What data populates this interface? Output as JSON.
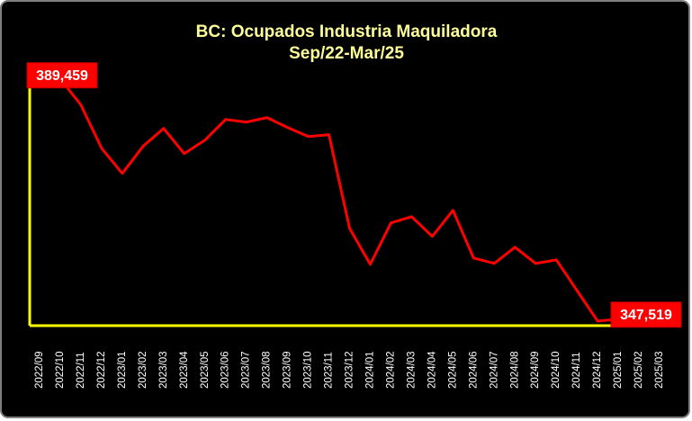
{
  "chart_data": {
    "type": "line",
    "title": "BC: Ocupados Industria Maquiladora",
    "subtitle": "Sep/22-Mar/25",
    "categories": [
      "2022/09",
      "2022/10",
      "2022/11",
      "2022/12",
      "2023/01",
      "2023/02",
      "2023/03",
      "2023/04",
      "2023/05",
      "2023/06",
      "2023/07",
      "2023/08",
      "2023/09",
      "2023/10",
      "2023/11",
      "2023/12",
      "2024/01",
      "2024/02",
      "2024/03",
      "2024/04",
      "2024/05",
      "2024/06",
      "2024/07",
      "2024/08",
      "2024/09",
      "2024/10",
      "2024/11",
      "2024/12",
      "2025/01",
      "2025/02",
      "2025/03"
    ],
    "values": [
      389459,
      388830,
      384255,
      376686,
      372270,
      377000,
      380155,
      375740,
      378105,
      381730,
      381260,
      382050,
      380310,
      378735,
      379050,
      362650,
      356340,
      363600,
      364700,
      361230,
      365800,
      357450,
      356500,
      359340,
      356500,
      357130,
      351770,
      346400,
      346720,
      347200,
      347519
    ],
    "value_labels": [
      "389,459",
      null,
      null,
      null,
      null,
      null,
      null,
      null,
      null,
      null,
      null,
      null,
      null,
      null,
      null,
      null,
      null,
      null,
      null,
      null,
      null,
      null,
      null,
      null,
      null,
      null,
      null,
      null,
      null,
      null,
      "347,519"
    ],
    "color": "#ff0000",
    "axis_color": "#ffff00",
    "ylim": [
      345600,
      393200
    ]
  }
}
